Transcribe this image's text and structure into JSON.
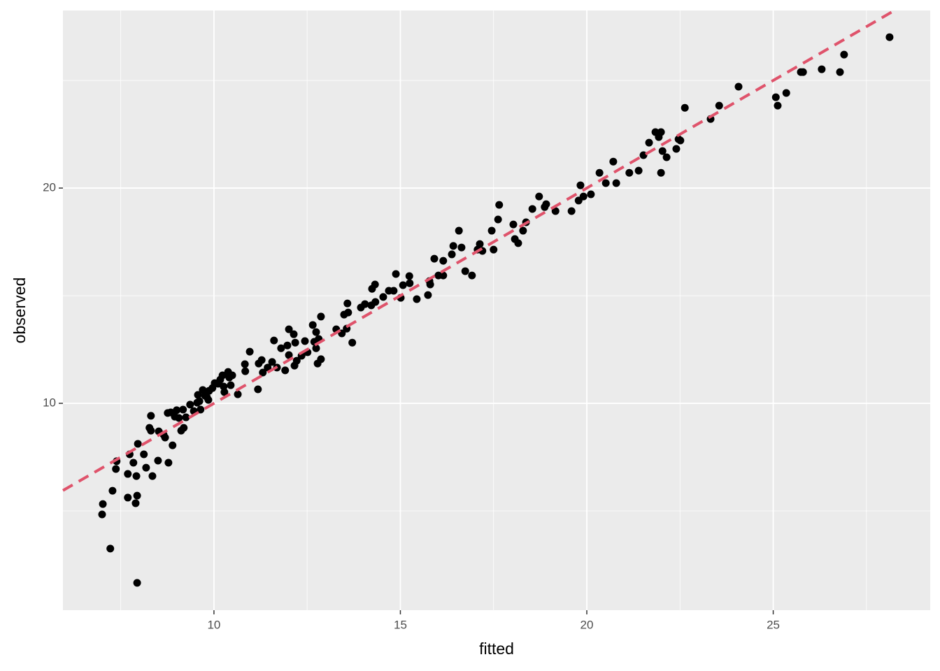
{
  "chart_data": {
    "type": "scatter",
    "x_label": "fitted",
    "y_label": "observed",
    "xlim": [
      5.95,
      29.21
    ],
    "ylim": [
      0.39,
      28.25
    ],
    "xticks": [
      10,
      15,
      20,
      25
    ],
    "yticks": [
      10,
      20
    ],
    "xminor": [
      7.5,
      12.5,
      17.5,
      22.5,
      27.5
    ],
    "yminor": [
      5,
      15,
      25
    ],
    "grid": true,
    "color": "#000000",
    "reference_line": {
      "slope": 1,
      "intercept": 0,
      "color": "#df536b",
      "dashed": true
    },
    "x": [
      7.0,
      7.02,
      7.22,
      7.28,
      7.37,
      7.39,
      7.69,
      7.69,
      7.74,
      7.84,
      7.92,
      7.9,
      7.94,
      7.94,
      7.96,
      8.12,
      8.18,
      8.27,
      8.31,
      8.31,
      8.35,
      8.5,
      8.52,
      8.65,
      8.69,
      8.76,
      8.78,
      8.84,
      8.89,
      8.95,
      9.0,
      9.06,
      9.12,
      9.17,
      9.19,
      9.25,
      9.36,
      9.46,
      9.55,
      9.57,
      9.61,
      9.64,
      9.7,
      9.76,
      9.81,
      9.85,
      9.87,
      9.96,
      10.02,
      10.11,
      10.17,
      10.23,
      10.26,
      10.28,
      10.38,
      10.41,
      10.45,
      10.49,
      10.64,
      10.83,
      10.84,
      10.96,
      11.18,
      11.2,
      11.28,
      11.31,
      11.44,
      11.56,
      11.61,
      11.69,
      11.8,
      11.91,
      11.97,
      12.01,
      12.01,
      12.14,
      12.16,
      12.18,
      12.22,
      12.35,
      12.44,
      12.51,
      12.65,
      12.69,
      12.74,
      12.74,
      12.78,
      12.81,
      12.87,
      12.87,
      13.28,
      13.43,
      13.49,
      13.56,
      13.58,
      13.6,
      13.71,
      13.94,
      14.05,
      14.22,
      14.24,
      14.32,
      14.33,
      14.54,
      14.69,
      14.82,
      14.88,
      15.01,
      15.07,
      15.24,
      15.25,
      15.44,
      15.74,
      15.78,
      15.8,
      15.91,
      16.02,
      16.15,
      16.15,
      16.38,
      16.42,
      16.57,
      16.64,
      16.74,
      16.92,
      17.07,
      17.13,
      17.2,
      17.45,
      17.5,
      17.62,
      17.65,
      18.03,
      18.07,
      18.16,
      18.29,
      18.37,
      18.54,
      18.72,
      18.87,
      18.91,
      19.16,
      19.59,
      19.78,
      19.83,
      19.91,
      20.11,
      20.34,
      20.51,
      20.71,
      20.79,
      21.14,
      21.39,
      21.52,
      21.67,
      21.84,
      21.93,
      21.99,
      21.99,
      22.03,
      22.14,
      22.4,
      22.46,
      22.51,
      22.63,
      23.32,
      23.55,
      24.07,
      25.07,
      25.12,
      25.35,
      25.74,
      25.8,
      26.3,
      26.79,
      26.9,
      28.12
    ],
    "values": [
      4.84,
      5.32,
      3.25,
      5.94,
      6.95,
      7.31,
      6.72,
      5.62,
      7.63,
      7.24,
      6.62,
      5.36,
      5.71,
      1.66,
      8.12,
      7.63,
      7.01,
      8.86,
      9.42,
      8.73,
      6.62,
      7.34,
      8.7,
      8.54,
      8.41,
      9.55,
      7.24,
      9.58,
      8.05,
      9.38,
      9.68,
      9.32,
      8.73,
      9.71,
      8.86,
      9.35,
      9.94,
      9.64,
      10.03,
      10.39,
      10.1,
      9.71,
      10.62,
      10.36,
      10.29,
      10.16,
      10.58,
      10.71,
      10.94,
      10.91,
      11.1,
      11.3,
      10.78,
      10.52,
      11.46,
      11.2,
      10.84,
      11.3,
      10.42,
      11.82,
      11.49,
      12.4,
      10.65,
      11.85,
      12.01,
      11.43,
      11.66,
      11.92,
      12.92,
      11.66,
      12.56,
      11.53,
      12.69,
      13.44,
      12.24,
      13.21,
      11.75,
      12.82,
      11.98,
      12.21,
      12.89,
      12.37,
      13.64,
      12.86,
      13.31,
      12.56,
      11.85,
      12.99,
      14.03,
      12.05,
      13.44,
      13.25,
      14.12,
      13.47,
      14.64,
      14.22,
      12.82,
      14.45,
      14.61,
      14.55,
      15.32,
      15.52,
      14.71,
      14.94,
      15.23,
      15.23,
      16.01,
      14.9,
      15.49,
      15.91,
      15.58,
      14.84,
      15.03,
      15.68,
      15.52,
      16.72,
      15.94,
      16.62,
      15.94,
      16.92,
      17.31,
      18.02,
      17.24,
      16.14,
      15.94,
      17.14,
      17.4,
      17.08,
      18.02,
      17.14,
      18.54,
      19.22,
      18.31,
      17.63,
      17.44,
      18.02,
      18.41,
      19.03,
      19.61,
      19.12,
      19.25,
      18.93,
      18.93,
      19.42,
      20.13,
      19.61,
      19.71,
      20.71,
      20.23,
      21.23,
      20.23,
      20.71,
      20.81,
      21.53,
      22.11,
      22.6,
      22.37,
      22.6,
      20.71,
      21.72,
      21.43,
      21.82,
      22.27,
      22.21,
      23.73,
      23.21,
      23.83,
      24.71,
      24.22,
      23.83,
      24.42,
      25.39,
      25.39,
      25.52,
      25.39,
      26.2,
      27.01
    ]
  }
}
